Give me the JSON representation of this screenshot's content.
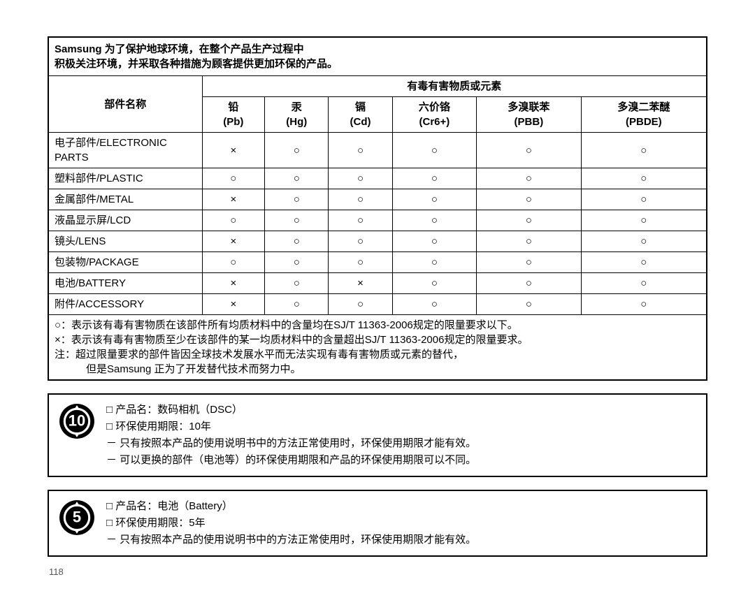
{
  "header": {
    "line1": "Samsung 为了保护地球环境，在整个产品生产过程中",
    "line2": "积极关注环境，并采取各种措施为顾客提供更加环保的产品。"
  },
  "colhead": {
    "parts": "部件名称",
    "group": "有毒有害物质或元素",
    "cols": [
      {
        "cn": "铅",
        "en": "(Pb)"
      },
      {
        "cn": "汞",
        "en": "(Hg)"
      },
      {
        "cn": "镉",
        "en": "(Cd)"
      },
      {
        "cn": "六价铬",
        "en": "(Cr6+)"
      },
      {
        "cn": "多溴联苯",
        "en": "(PBB)"
      },
      {
        "cn": "多溴二苯醚",
        "en": "(PBDE)"
      }
    ]
  },
  "symbols": {
    "o": "○",
    "x": "×"
  },
  "rows": [
    {
      "label": "电子部件/ELECTRONIC PARTS",
      "v": [
        "x",
        "o",
        "o",
        "o",
        "o",
        "o"
      ]
    },
    {
      "label": "塑料部件/PLASTIC",
      "v": [
        "o",
        "o",
        "o",
        "o",
        "o",
        "o"
      ]
    },
    {
      "label": "金属部件/METAL",
      "v": [
        "x",
        "o",
        "o",
        "o",
        "o",
        "o"
      ]
    },
    {
      "label": "液晶显示屏/LCD",
      "v": [
        "o",
        "o",
        "o",
        "o",
        "o",
        "o"
      ]
    },
    {
      "label": "镜头/LENS",
      "v": [
        "x",
        "o",
        "o",
        "o",
        "o",
        "o"
      ]
    },
    {
      "label": "包装物/PACKAGE",
      "v": [
        "o",
        "o",
        "o",
        "o",
        "o",
        "o"
      ]
    },
    {
      "label": "电池/BATTERY",
      "v": [
        "x",
        "o",
        "x",
        "o",
        "o",
        "o"
      ]
    },
    {
      "label": "附件/ACCESSORY",
      "v": [
        "x",
        "o",
        "o",
        "o",
        "o",
        "o"
      ]
    }
  ],
  "notes": {
    "l1": "○：表示该有毒有害物质在该部件所有均质材料中的含量均在SJ/T 11363-2006规定的限量要求以下。",
    "l2": "×：表示该有毒有害物质至少在该部件的某一均质材料中的含量超出SJ/T 11363-2006规定的限量要求。",
    "l3": "注：超过限量要求的部件皆因全球技术发展水平而无法实现有毒有害物质或元素的替代，",
    "l4": "但是Samsung 正为了开发替代技术而努力中。"
  },
  "box1": {
    "num": "10",
    "items": [
      {
        "t": "sq",
        "text": "产品名：数码相机（DSC）"
      },
      {
        "t": "sq",
        "text": "环保使用期限：10年"
      },
      {
        "t": "dash",
        "text": "只有按照本产品的使用说明书中的方法正常使用时，环保使用期限才能有效。"
      },
      {
        "t": "dash",
        "text": "可以更换的部件（电池等）的环保使用期限和产品的环保使用期限可以不同。"
      }
    ]
  },
  "box2": {
    "num": "5",
    "items": [
      {
        "t": "sq",
        "text": "产品名：电池（Battery）"
      },
      {
        "t": "sq",
        "text": "环保使用期限：5年"
      },
      {
        "t": "dash",
        "text": "只有按照本产品的使用说明书中的方法正常使用时，环保使用期限才能有效。"
      }
    ]
  },
  "pagenum": "118",
  "colors": {
    "border": "#000000",
    "bg": "#ffffff",
    "epup_fill": "#000000",
    "epup_text": "#ffffff"
  }
}
